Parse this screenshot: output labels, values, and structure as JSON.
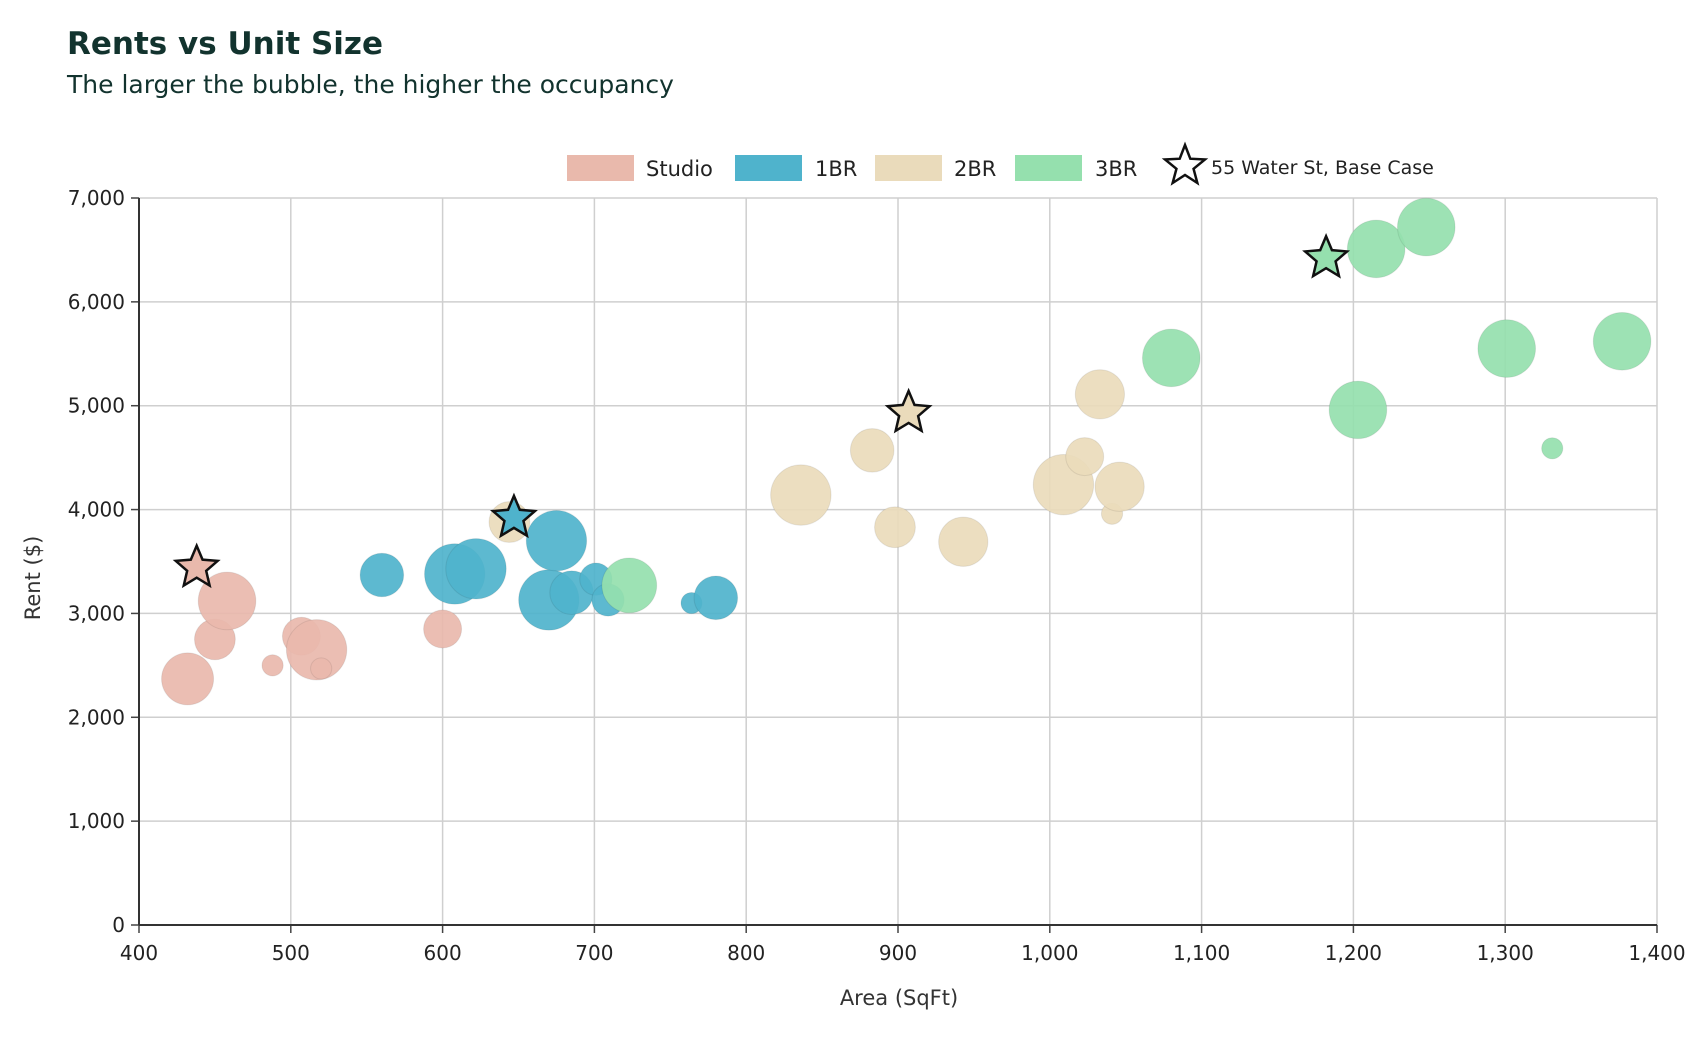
{
  "title": "Rents vs Unit Size",
  "subtitle": "The larger the bubble, the higher the occupancy",
  "chart_data": {
    "type": "scatter",
    "subtype": "bubble",
    "title": "Rents vs Unit Size",
    "subtitle": "The larger the bubble, the higher the occupancy",
    "xlabel": "Area (SqFt)",
    "ylabel": "Rent ($)",
    "xlim": [
      400,
      1400
    ],
    "ylim": [
      0,
      7000
    ],
    "x_ticks": [
      400,
      500,
      600,
      700,
      800,
      900,
      1000,
      1100,
      1200,
      1300,
      1400
    ],
    "y_ticks": [
      0,
      1000,
      2000,
      3000,
      4000,
      5000,
      6000,
      7000
    ],
    "x_tick_labels": [
      "400",
      "500",
      "600",
      "700",
      "800",
      "900",
      "1,000",
      "1,100",
      "1,200",
      "1,300",
      "1,400"
    ],
    "y_tick_labels": [
      "0",
      "1,000",
      "2,000",
      "3,000",
      "4,000",
      "5,000",
      "6,000",
      "7,000"
    ],
    "grid": true,
    "legend_position": "top-center",
    "legend": [
      "Studio",
      "1BR",
      "2BR",
      "3BR",
      "55 Water St, Base Case"
    ],
    "series": [
      {
        "name": "Studio",
        "fill": "#e9b9ac",
        "points": [
          {
            "x": 432,
            "y": 2370,
            "occupancy": 0.75
          },
          {
            "x": 450,
            "y": 2750,
            "occupancy": 0.55
          },
          {
            "x": 458,
            "y": 3120,
            "occupancy": 0.85
          },
          {
            "x": 488,
            "y": 2500,
            "occupancy": 0.2
          },
          {
            "x": 507,
            "y": 2780,
            "occupancy": 0.5
          },
          {
            "x": 517,
            "y": 2650,
            "occupancy": 0.9
          },
          {
            "x": 520,
            "y": 2470,
            "occupancy": 0.2
          },
          {
            "x": 600,
            "y": 2850,
            "occupancy": 0.5
          }
        ]
      },
      {
        "name": "1BR",
        "fill": "#4fb3cc",
        "points": [
          {
            "x": 560,
            "y": 3370,
            "occupancy": 0.6
          },
          {
            "x": 608,
            "y": 3380,
            "occupancy": 0.9
          },
          {
            "x": 622,
            "y": 3430,
            "occupancy": 0.9
          },
          {
            "x": 670,
            "y": 3130,
            "occupancy": 0.9
          },
          {
            "x": 675,
            "y": 3700,
            "occupancy": 0.9
          },
          {
            "x": 685,
            "y": 3200,
            "occupancy": 0.6
          },
          {
            "x": 701,
            "y": 3330,
            "occupancy": 0.4
          },
          {
            "x": 709,
            "y": 3130,
            "occupancy": 0.4
          },
          {
            "x": 764,
            "y": 3100,
            "occupancy": 0.2
          },
          {
            "x": 780,
            "y": 3150,
            "occupancy": 0.6
          }
        ]
      },
      {
        "name": "2BR",
        "fill": "#eadbbb",
        "points": [
          {
            "x": 644,
            "y": 3880,
            "occupancy": 0.55
          },
          {
            "x": 836,
            "y": 4140,
            "occupancy": 0.9
          },
          {
            "x": 883,
            "y": 4570,
            "occupancy": 0.6
          },
          {
            "x": 898,
            "y": 3830,
            "occupancy": 0.55
          },
          {
            "x": 943,
            "y": 3690,
            "occupancy": 0.7
          },
          {
            "x": 1009,
            "y": 4240,
            "occupancy": 0.9
          },
          {
            "x": 1023,
            "y": 4510,
            "occupancy": 0.5
          },
          {
            "x": 1033,
            "y": 5110,
            "occupancy": 0.7
          },
          {
            "x": 1041,
            "y": 3960,
            "occupancy": 0.2
          },
          {
            "x": 1046,
            "y": 4220,
            "occupancy": 0.7
          }
        ]
      },
      {
        "name": "3BR",
        "fill": "#95e0ae",
        "points": [
          {
            "x": 723,
            "y": 3270,
            "occupancy": 0.8
          },
          {
            "x": 1080,
            "y": 5460,
            "occupancy": 0.85
          },
          {
            "x": 1203,
            "y": 4960,
            "occupancy": 0.85
          },
          {
            "x": 1215,
            "y": 6510,
            "occupancy": 0.85
          },
          {
            "x": 1248,
            "y": 6720,
            "occupancy": 0.85
          },
          {
            "x": 1301,
            "y": 5550,
            "occupancy": 0.85
          },
          {
            "x": 1331,
            "y": 4590,
            "occupancy": 0.2
          },
          {
            "x": 1377,
            "y": 5620,
            "occupancy": 0.85
          }
        ]
      }
    ],
    "highlight": {
      "name": "55 Water St, Base Case",
      "marker": "star",
      "points": [
        {
          "unit": "Studio",
          "x": 438,
          "y": 3440,
          "fill": "#e9b9ac"
        },
        {
          "unit": "1BR",
          "x": 647,
          "y": 3920,
          "fill": "#4fb3cc"
        },
        {
          "unit": "2BR",
          "x": 907,
          "y": 4930,
          "fill": "#eadbbb"
        },
        {
          "unit": "3BR",
          "x": 1182,
          "y": 6420,
          "fill": "#95e0ae"
        }
      ]
    }
  }
}
